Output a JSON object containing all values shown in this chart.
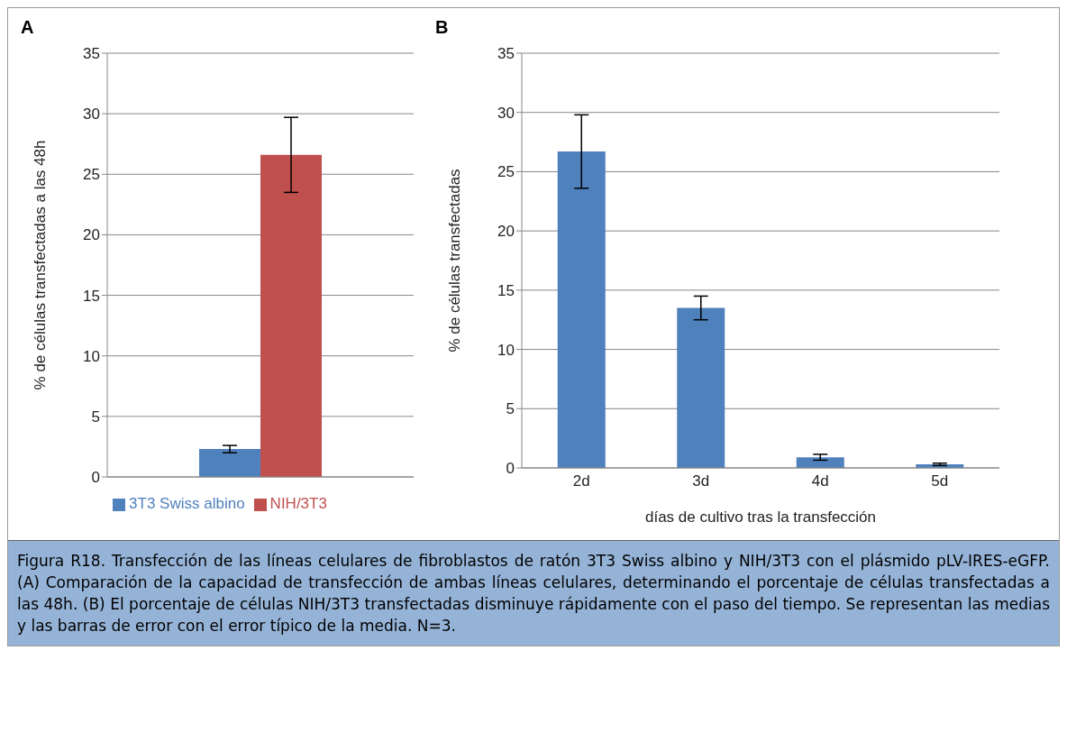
{
  "chart_data": [
    {
      "type": "bar",
      "title": "A",
      "ylabel": "% de células transfectadas a las 48h",
      "categories": [
        null
      ],
      "series": [
        {
          "name": "3T3 Swiss albino",
          "color": "#4f81bd",
          "values": [
            2.3
          ],
          "errors": [
            0.3
          ]
        },
        {
          "name": "NIH/3T3",
          "color": "#c0504d",
          "values": [
            26.6
          ],
          "errors": [
            3.1
          ]
        }
      ],
      "ylim": [
        0,
        35
      ],
      "yticks": [
        0,
        5,
        10,
        15,
        20,
        25,
        30,
        35
      ],
      "grid": "y",
      "legend": "bottom",
      "tick_labels": "y"
    },
    {
      "type": "bar",
      "title": "B",
      "xlabel": "días de cultivo tras la transfección",
      "ylabel": "% de células transfectadas",
      "categories": [
        "2d",
        "3d",
        "4d",
        "5d"
      ],
      "series": [
        {
          "color": "#4f81bd",
          "values": [
            26.7,
            13.5,
            0.9,
            0.3
          ],
          "errors": [
            3.1,
            1.0,
            0.25,
            0.1
          ]
        }
      ],
      "ylim": [
        0,
        35
      ],
      "yticks": [
        0,
        5,
        10,
        15,
        20,
        25,
        30,
        35
      ],
      "grid": "y",
      "annotations": [
        "Figura R18. Transfección de las líneas celulares de fibroblastos de ratón 3T3 Swiss albino y NIH/3T3 con el plásmido pLV-IRES-eGFP. (A) Comparación de la capacidad de transfección de ambas líneas celulares, determinando el porcentaje de células transfectadas a las 48h. (B) El porcentaje de células NIH/3T3 transfectadas disminuye rápidamente con el paso del tiempo. Se representan las medias y las barras de error con el error típico de la media. N=3."
      ]
    }
  ]
}
